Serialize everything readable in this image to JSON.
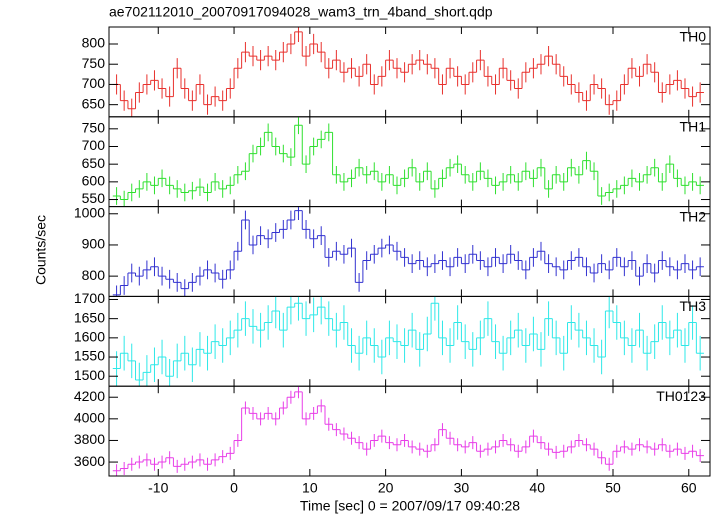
{
  "chart_data": {
    "type": "step",
    "title": "ae702112010_20070917094028_wam3_trn_4band_short.qdp",
    "xlabel": "Time [sec] 0 = 2007/09/17 09:40:28",
    "ylabel": "Counts/sec",
    "xlim": [
      -16.5,
      62.8
    ],
    "xticks": [
      -10,
      0,
      10,
      20,
      30,
      40,
      50,
      60
    ],
    "x": [
      -15.5,
      -14.5,
      -13.5,
      -12.5,
      -11.5,
      -10.5,
      -9.5,
      -8.5,
      -7.5,
      -6.5,
      -5.5,
      -4.5,
      -3.5,
      -2.5,
      -1.5,
      -0.5,
      0.5,
      1.5,
      2.5,
      3.5,
      4.5,
      5.5,
      6.5,
      7.5,
      8.5,
      9.5,
      10.5,
      11.5,
      12.5,
      13.5,
      14.5,
      15.5,
      16.5,
      17.5,
      18.5,
      19.5,
      20.5,
      21.5,
      22.5,
      23.5,
      24.5,
      25.5,
      26.5,
      27.5,
      28.5,
      29.5,
      30.5,
      31.5,
      32.5,
      33.5,
      34.5,
      35.5,
      36.5,
      37.5,
      38.5,
      39.5,
      40.5,
      41.5,
      42.5,
      43.5,
      44.5,
      45.5,
      46.5,
      47.5,
      48.5,
      49.5,
      50.5,
      51.5,
      52.5,
      53.5,
      54.5,
      55.5,
      56.5,
      57.5,
      58.5,
      59.5,
      60.5,
      61.5
    ],
    "panels": [
      {
        "name": "TH0",
        "color": "#e8312d",
        "ylim": [
          620,
          842
        ],
        "yticks": [
          650,
          700,
          750,
          800
        ],
        "error": 25,
        "values": [
          700,
          660,
          640,
          680,
          700,
          710,
          690,
          670,
          740,
          690,
          660,
          700,
          650,
          670,
          660,
          690,
          740,
          780,
          770,
          760,
          770,
          760,
          780,
          800,
          830,
          770,
          800,
          780,
          740,
          760,
          730,
          740,
          720,
          750,
          700,
          720,
          760,
          740,
          730,
          750,
          760,
          750,
          740,
          700,
          740,
          720,
          700,
          730,
          760,
          720,
          700,
          740,
          710,
          690,
          730,
          740,
          750,
          770,
          750,
          720,
          700,
          680,
          660,
          700,
          690,
          650,
          660,
          700,
          740,
          720,
          750,
          730,
          680,
          700,
          710,
          690,
          670,
          680
        ]
      },
      {
        "name": "TH1",
        "color": "#2fe02f",
        "ylim": [
          530,
          784
        ],
        "yticks": [
          550,
          600,
          650,
          700,
          750
        ],
        "error": 25,
        "values": [
          560,
          550,
          570,
          580,
          600,
          590,
          610,
          590,
          580,
          570,
          575,
          585,
          570,
          600,
          580,
          590,
          620,
          630,
          680,
          700,
          740,
          700,
          680,
          670,
          760,
          650,
          700,
          720,
          740,
          620,
          600,
          610,
          640,
          620,
          630,
          600,
          620,
          590,
          610,
          640,
          600,
          630,
          580,
          610,
          640,
          650,
          620,
          600,
          630,
          610,
          590,
          600,
          620,
          600,
          630,
          610,
          640,
          580,
          620,
          600,
          640,
          620,
          660,
          630,
          560,
          570,
          580,
          590,
          610,
          600,
          620,
          640,
          600,
          650,
          610,
          590,
          600,
          590
        ]
      },
      {
        "name": "TH2",
        "color": "#3232d0",
        "ylim": [
          735,
          1023
        ],
        "yticks": [
          800,
          900,
          1000
        ],
        "error": 30,
        "values": [
          740,
          770,
          810,
          800,
          820,
          830,
          800,
          790,
          780,
          760,
          780,
          800,
          820,
          810,
          790,
          820,
          880,
          980,
          900,
          930,
          920,
          940,
          950,
          980,
          1010,
          950,
          920,
          930,
          860,
          880,
          870,
          890,
          780,
          850,
          870,
          890,
          900,
          880,
          860,
          840,
          850,
          830,
          840,
          850,
          830,
          860,
          840,
          870,
          850,
          830,
          860,
          840,
          870,
          850,
          820,
          860,
          880,
          840,
          830,
          820,
          850,
          860,
          830,
          810,
          840,
          820,
          860,
          830,
          850,
          800,
          840,
          810,
          850,
          830,
          820,
          840,
          820,
          830
        ]
      },
      {
        "name": "TH3",
        "color": "#2ee8e8",
        "ylim": [
          1474,
          1708
        ],
        "yticks": [
          1500,
          1550,
          1600,
          1650,
          1700
        ],
        "error": 45,
        "values": [
          1520,
          1560,
          1540,
          1490,
          1510,
          1530,
          1550,
          1500,
          1540,
          1560,
          1530,
          1570,
          1560,
          1590,
          1580,
          1600,
          1620,
          1650,
          1630,
          1620,
          1640,
          1670,
          1620,
          1680,
          1690,
          1650,
          1660,
          1680,
          1650,
          1620,
          1640,
          1580,
          1560,
          1600,
          1580,
          1550,
          1600,
          1590,
          1580,
          1620,
          1570,
          1610,
          1690,
          1600,
          1580,
          1640,
          1590,
          1570,
          1600,
          1650,
          1590,
          1560,
          1600,
          1620,
          1580,
          1610,
          1570,
          1650,
          1600,
          1560,
          1640,
          1620,
          1600,
          1580,
          1550,
          1670,
          1640,
          1600,
          1580,
          1620,
          1560,
          1590,
          1640,
          1600,
          1620,
          1580,
          1640,
          1560
        ]
      },
      {
        "name": "TH0123",
        "color": "#e83ee8",
        "ylim": [
          3471,
          4302
        ],
        "yticks": [
          3600,
          3800,
          4000,
          4200
        ],
        "error": 60,
        "values": [
          3520,
          3540,
          3580,
          3600,
          3620,
          3580,
          3600,
          3640,
          3560,
          3580,
          3600,
          3620,
          3580,
          3620,
          3650,
          3680,
          3800,
          4100,
          4050,
          4000,
          4050,
          4000,
          4100,
          4200,
          4250,
          4000,
          4050,
          4120,
          3950,
          3900,
          3860,
          3820,
          3780,
          3720,
          3800,
          3840,
          3780,
          3760,
          3800,
          3740,
          3720,
          3700,
          3760,
          3900,
          3820,
          3760,
          3740,
          3780,
          3700,
          3720,
          3740,
          3800,
          3760,
          3700,
          3740,
          3840,
          3780,
          3720,
          3690,
          3700,
          3740,
          3800,
          3760,
          3720,
          3640,
          3580,
          3700,
          3740,
          3720,
          3760,
          3740,
          3720,
          3760,
          3700,
          3720,
          3680,
          3700,
          3660
        ]
      }
    ]
  }
}
